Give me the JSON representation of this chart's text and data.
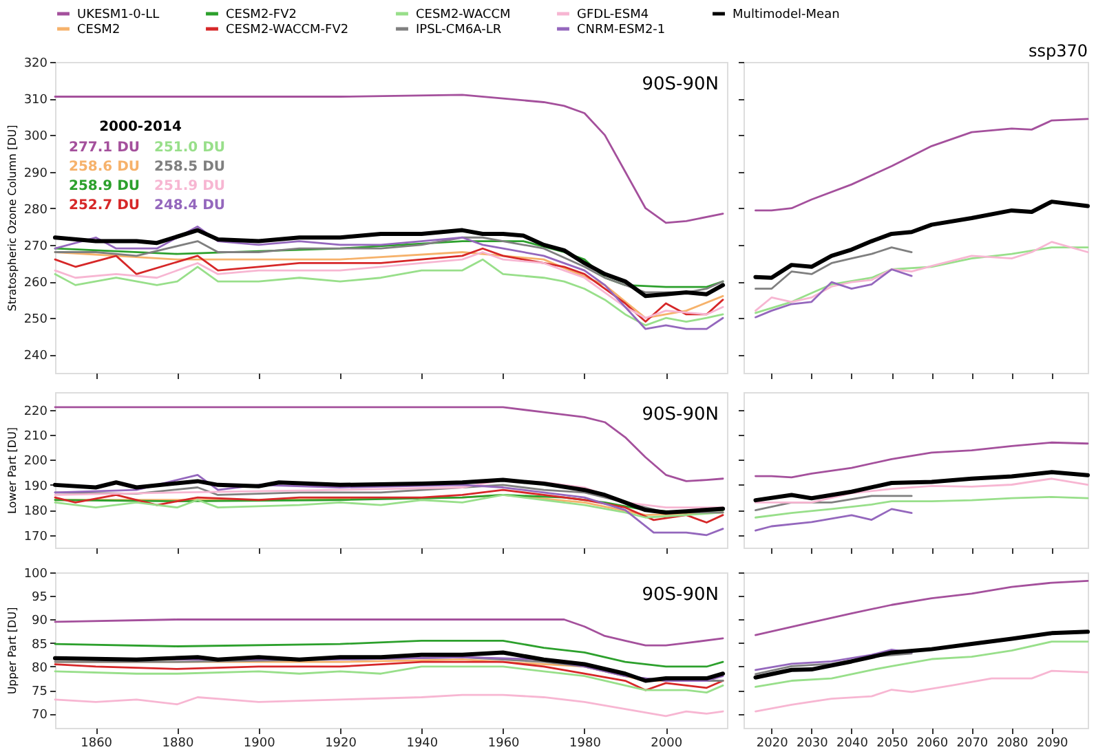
{
  "chart_data": [
    {
      "type": "line",
      "ylabel": "Stratospheric Ozone Column [DU]",
      "xlim": [
        1850,
        2015
      ],
      "xticks": [
        1860,
        1880,
        1900,
        1920,
        1940,
        1960,
        1980,
        2000
      ],
      "ylim": [
        235,
        320
      ],
      "yticks": [
        240,
        250,
        260,
        270,
        280,
        290,
        300,
        310,
        320
      ],
      "tick_labels": "y",
      "legend": "top",
      "annotations": [
        "90S-90N",
        "2000-2014",
        "277.1 DU",
        "258.6 DU",
        "258.9 DU",
        "252.7 DU",
        "251.0 DU",
        "258.5 DU",
        "251.9 DU",
        "248.4 DU"
      ],
      "series": [
        {
          "name": "UKESM1-0-LL",
          "color": "#a4509c",
          "x": [
            1850,
            1880,
            1920,
            1950,
            1960,
            1970,
            1975,
            1980,
            1985,
            1990,
            1995,
            2000,
            2005,
            2014
          ],
          "values": [
            310.5,
            310.5,
            310.5,
            311,
            310,
            309,
            308,
            306,
            300,
            290,
            280,
            276,
            276.5,
            278.5
          ]
        },
        {
          "name": "CESM2",
          "color": "#f6b26b",
          "x": [
            1850,
            1880,
            1920,
            1950,
            1970,
            1985,
            1995,
            2005,
            2014
          ],
          "values": [
            268,
            266,
            266,
            268,
            266,
            259,
            250,
            252,
            256
          ]
        },
        {
          "name": "CESM2-FV2",
          "color": "#2ca02c",
          "x": [
            1850,
            1880,
            1920,
            1950,
            1965,
            1975,
            1980,
            1985,
            1990,
            2000,
            2010,
            2014
          ],
          "values": [
            269,
            267.5,
            269,
            271,
            271,
            268,
            266,
            261,
            259,
            258.5,
            258.5,
            260
          ]
        },
        {
          "name": "CESM2-WACCM-FV2",
          "color": "#d62728",
          "x": [
            1850,
            1855,
            1865,
            1870,
            1885,
            1890,
            1900,
            1910,
            1920,
            1930,
            1940,
            1950,
            1955,
            1960,
            1970,
            1975,
            1980,
            1985,
            1990,
            1995,
            2000,
            2005,
            2010,
            2014
          ],
          "values": [
            266,
            264,
            267,
            262,
            267,
            263,
            264,
            265,
            265,
            265,
            266,
            267,
            269,
            267,
            265,
            264,
            262,
            258,
            254,
            249,
            254,
            251,
            251,
            255
          ]
        },
        {
          "name": "CESM2-WACCM",
          "color": "#98df8a",
          "x": [
            1850,
            1855,
            1865,
            1875,
            1880,
            1885,
            1890,
            1900,
            1910,
            1920,
            1930,
            1940,
            1950,
            1955,
            1960,
            1970,
            1975,
            1980,
            1985,
            1990,
            1995,
            2000,
            2005,
            2010,
            2014
          ],
          "values": [
            262,
            259,
            261,
            259,
            260,
            264,
            260,
            260,
            261,
            260,
            261,
            263,
            263,
            266,
            262,
            261,
            260,
            258,
            255,
            251,
            248,
            250,
            249,
            250,
            251
          ]
        },
        {
          "name": "IPSL-CM6A-LR",
          "color": "#7f7f7f",
          "x": [
            1850,
            1860,
            1870,
            1885,
            1890,
            1900,
            1910,
            1920,
            1930,
            1940,
            1950,
            1955,
            1960,
            1970,
            1980,
            1985,
            1990,
            1995,
            2000,
            2005,
            2010,
            2014
          ],
          "values": [
            268,
            268,
            267,
            271,
            268,
            268,
            269,
            269,
            269,
            270,
            272,
            272,
            271,
            269,
            264,
            261,
            259,
            257,
            257,
            257,
            258,
            260
          ]
        },
        {
          "name": "GFDL-ESM4",
          "color": "#f7b6d2",
          "x": [
            1850,
            1855,
            1865,
            1875,
            1885,
            1890,
            1900,
            1910,
            1920,
            1930,
            1940,
            1950,
            1955,
            1960,
            1970,
            1975,
            1980,
            1985,
            1990,
            1995,
            2000,
            2010,
            2014
          ],
          "values": [
            263,
            261,
            262,
            261,
            265,
            262,
            263,
            263,
            263,
            264,
            265,
            266,
            268,
            266,
            265,
            263,
            261,
            257,
            253,
            250,
            252,
            251,
            253
          ]
        },
        {
          "name": "CNRM-ESM2-1",
          "color": "#9467bd",
          "x": [
            1850,
            1860,
            1865,
            1875,
            1885,
            1890,
            1900,
            1910,
            1920,
            1930,
            1940,
            1950,
            1955,
            1960,
            1970,
            1980,
            1985,
            1990,
            1995,
            2000,
            2005,
            2010,
            2014
          ],
          "values": [
            269,
            272,
            269,
            269,
            275,
            271,
            270,
            271,
            270,
            270,
            271,
            272,
            270,
            269,
            267,
            263,
            259,
            253,
            247,
            248,
            247,
            247,
            250
          ]
        },
        {
          "name": "Multimodel-Mean",
          "color": "#000000",
          "x": [
            1850,
            1860,
            1870,
            1875,
            1885,
            1890,
            1900,
            1910,
            1920,
            1930,
            1940,
            1950,
            1955,
            1960,
            1965,
            1970,
            1975,
            1980,
            1985,
            1990,
            1995,
            2000,
            2005,
            2010,
            2014
          ],
          "values": [
            272,
            271,
            271,
            270.5,
            274,
            271.5,
            271,
            272,
            272,
            273,
            273,
            274,
            273,
            273,
            272.5,
            270,
            268.5,
            265,
            262,
            260,
            256,
            256.5,
            257,
            256.5,
            259
          ]
        }
      ]
    },
    {
      "type": "line",
      "title": "ssp370",
      "xlim": [
        2013,
        2099
      ],
      "xticks": [
        2020,
        2030,
        2040,
        2050,
        2060,
        2070,
        2080,
        2090
      ],
      "ylim": [
        235,
        320
      ],
      "yticks": [
        240,
        250,
        260,
        270,
        280,
        290,
        300,
        310,
        320
      ],
      "tick_labels": false,
      "series": [
        {
          "color": "#a4509c",
          "x": [
            2016,
            2020,
            2025,
            2030,
            2040,
            2050,
            2060,
            2070,
            2080,
            2085,
            2090,
            2099
          ],
          "values": [
            279.4,
            279.4,
            280,
            282.4,
            286.5,
            291.5,
            297,
            300.8,
            301.8,
            301.5,
            304,
            304.4
          ]
        },
        {
          "color": "#98df8a",
          "x": [
            2016,
            2025,
            2035,
            2045,
            2050,
            2060,
            2070,
            2080,
            2090,
            2099
          ],
          "values": [
            251.4,
            254.4,
            259.2,
            261,
            263.3,
            264,
            266.3,
            267.5,
            269.3,
            269.3
          ]
        },
        {
          "color": "#7f7f7f",
          "x": [
            2016,
            2020,
            2025,
            2030,
            2035,
            2040,
            2045,
            2050,
            2055
          ],
          "values": [
            258,
            258,
            262.7,
            262,
            265,
            266.3,
            267.5,
            269.3,
            268
          ]
        },
        {
          "color": "#f7b6d2",
          "x": [
            2016,
            2020,
            2025,
            2030,
            2035,
            2040,
            2045,
            2050,
            2055,
            2060,
            2070,
            2080,
            2085,
            2090,
            2099
          ],
          "values": [
            252,
            255.6,
            254.4,
            255.6,
            258.6,
            259.8,
            260.4,
            263.3,
            262.7,
            264.2,
            267,
            266.3,
            268,
            270.8,
            268
          ]
        },
        {
          "color": "#9467bd",
          "x": [
            2016,
            2020,
            2025,
            2030,
            2035,
            2040,
            2045,
            2050,
            2055
          ],
          "values": [
            250.2,
            252,
            253.8,
            254.4,
            259.8,
            258,
            259.2,
            263.3,
            261.5
          ]
        },
        {
          "color": "#000000",
          "x": [
            2016,
            2020,
            2025,
            2030,
            2035,
            2040,
            2045,
            2050,
            2055,
            2060,
            2070,
            2080,
            2085,
            2090,
            2099
          ],
          "values": [
            261.2,
            261,
            264.5,
            264,
            267,
            268.7,
            271,
            273,
            273.5,
            275.5,
            277.3,
            279.4,
            279,
            281.8,
            280.6
          ]
        }
      ]
    },
    {
      "type": "line",
      "ylabel": "Lower Part [DU]",
      "xlim": [
        1850,
        2015
      ],
      "xticks": [
        1860,
        1880,
        1900,
        1920,
        1940,
        1960,
        1980,
        2000
      ],
      "ylim": [
        165,
        227
      ],
      "yticks": [
        170,
        180,
        190,
        200,
        210,
        220
      ],
      "tick_labels": "y",
      "annotations": [
        "90S-90N"
      ],
      "series": [
        {
          "color": "#a4509c",
          "x": [
            1850,
            1900,
            1960,
            1970,
            1980,
            1985,
            1990,
            1995,
            2000,
            2005,
            2010,
            2014
          ],
          "values": [
            221,
            221,
            221,
            219,
            217,
            215,
            209,
            201,
            194,
            191.5,
            192,
            192.5
          ]
        },
        {
          "color": "#f6b26b",
          "x": [
            1850,
            1900,
            1950,
            1960,
            1980,
            1995,
            2014
          ],
          "values": [
            184,
            184,
            185,
            186,
            183,
            178,
            179
          ]
        },
        {
          "color": "#2ca02c",
          "x": [
            1850,
            1880,
            1920,
            1950,
            1960,
            1975,
            1985,
            1995,
            2005,
            2014
          ],
          "values": [
            184,
            183.5,
            184,
            185,
            186,
            185,
            183,
            180,
            179,
            180
          ]
        },
        {
          "color": "#d62728",
          "x": [
            1850,
            1855,
            1865,
            1875,
            1885,
            1900,
            1910,
            1920,
            1940,
            1950,
            1960,
            1970,
            1980,
            1990,
            1997,
            2005,
            2010,
            2014
          ],
          "values": [
            185,
            183,
            186,
            182,
            185,
            184,
            185,
            185,
            185,
            186,
            188,
            186,
            184,
            181,
            176,
            178,
            175,
            178
          ]
        },
        {
          "color": "#98df8a",
          "x": [
            1850,
            1860,
            1870,
            1880,
            1885,
            1890,
            1910,
            1920,
            1930,
            1940,
            1950,
            1960,
            1970,
            1980,
            1990,
            1995,
            2005,
            2014
          ],
          "values": [
            183,
            181,
            183,
            181,
            184,
            181,
            182,
            183,
            182,
            184,
            183,
            186,
            184,
            182,
            179,
            177,
            178,
            179
          ]
        },
        {
          "color": "#7f7f7f",
          "x": [
            1850,
            1870,
            1885,
            1890,
            1910,
            1930,
            1950,
            1960,
            1970,
            1980,
            1990,
            2000,
            2014
          ],
          "values": [
            187,
            186.5,
            189,
            186,
            187,
            187,
            189,
            190,
            188,
            187,
            183,
            179,
            179
          ]
        },
        {
          "color": "#f7b6d2",
          "x": [
            1850,
            1880,
            1920,
            1950,
            1960,
            1970,
            1980,
            1990,
            2000,
            2014
          ],
          "values": [
            186,
            187,
            188,
            189,
            192,
            191,
            189,
            183,
            181,
            181
          ]
        },
        {
          "color": "#9467bd",
          "x": [
            1850,
            1870,
            1885,
            1890,
            1900,
            1920,
            1950,
            1960,
            1970,
            1980,
            1990,
            1997,
            2005,
            2010,
            2014
          ],
          "values": [
            187,
            188,
            194,
            188,
            190,
            189,
            190,
            189,
            187,
            185,
            180,
            171,
            171,
            170,
            172.5
          ]
        },
        {
          "color": "#000000",
          "x": [
            1850,
            1860,
            1865,
            1870,
            1885,
            1890,
            1900,
            1905,
            1920,
            1940,
            1950,
            1960,
            1970,
            1980,
            1985,
            1990,
            1995,
            2000,
            2005,
            2014
          ],
          "values": [
            190,
            189,
            191,
            189,
            191.5,
            190,
            189.5,
            191,
            190,
            190.5,
            191,
            192,
            190.5,
            188,
            186,
            183,
            180,
            179,
            179.5,
            180.5
          ]
        }
      ]
    },
    {
      "type": "line",
      "xlim": [
        2013,
        2099
      ],
      "xticks": [
        2020,
        2030,
        2040,
        2050,
        2060,
        2070,
        2080,
        2090
      ],
      "ylim": [
        165,
        227
      ],
      "yticks": [
        170,
        180,
        190,
        200,
        210,
        220
      ],
      "tick_labels": false,
      "series": [
        {
          "color": "#a4509c",
          "x": [
            2016,
            2020,
            2025,
            2030,
            2040,
            2050,
            2060,
            2070,
            2080,
            2090,
            2099
          ],
          "values": [
            193.5,
            193.5,
            193,
            194.5,
            196.8,
            200.3,
            202.9,
            203.8,
            205.5,
            206.9,
            206.5
          ]
        },
        {
          "color": "#98df8a",
          "x": [
            2016,
            2025,
            2035,
            2045,
            2050,
            2060,
            2070,
            2080,
            2090,
            2099
          ],
          "values": [
            177,
            178.8,
            180.4,
            182.2,
            183.5,
            183.5,
            183.9,
            184.7,
            185.2,
            184.7
          ]
        },
        {
          "color": "#7f7f7f",
          "x": [
            2016,
            2025,
            2035,
            2045,
            2055
          ],
          "values": [
            179.9,
            183,
            183,
            185.6,
            185.6
          ]
        },
        {
          "color": "#f7b6d2",
          "x": [
            2016,
            2030,
            2040,
            2050,
            2060,
            2070,
            2080,
            2090,
            2099
          ],
          "values": [
            183,
            183,
            186.7,
            188.4,
            189.6,
            189.3,
            190.1,
            192.5,
            190.1
          ]
        },
        {
          "color": "#9467bd",
          "x": [
            2016,
            2020,
            2030,
            2040,
            2045,
            2050,
            2055
          ],
          "values": [
            171.8,
            173.5,
            175.2,
            177.9,
            176.1,
            180.4,
            178.8
          ]
        },
        {
          "color": "#000000",
          "x": [
            2016,
            2025,
            2030,
            2040,
            2050,
            2060,
            2070,
            2080,
            2090,
            2099
          ],
          "values": [
            183.9,
            186,
            184.7,
            187.3,
            190.8,
            191.2,
            192.5,
            193.4,
            195.1,
            193.9
          ]
        }
      ]
    },
    {
      "type": "line",
      "ylabel": "Upper Part [DU]",
      "xlim": [
        1850,
        2015
      ],
      "xticks": [
        1860,
        1880,
        1900,
        1920,
        1940,
        1960,
        1980,
        2000
      ],
      "ylim": [
        67,
        100
      ],
      "yticks": [
        70,
        75,
        80,
        85,
        90,
        95,
        100
      ],
      "annotations": [
        "90S-90N"
      ],
      "series": [
        {
          "color": "#a4509c",
          "x": [
            1850,
            1880,
            1930,
            1960,
            1975,
            1980,
            1985,
            1990,
            1995,
            2000,
            2005,
            2014
          ],
          "values": [
            89.5,
            90,
            90,
            90,
            90,
            88.5,
            86.5,
            85.5,
            84.5,
            84.5,
            85,
            86
          ]
        },
        {
          "color": "#f6b26b",
          "x": [
            1850,
            1920,
            1950,
            1980,
            1995,
            2014
          ],
          "values": [
            81,
            81,
            81.5,
            80,
            77,
            77
          ]
        },
        {
          "color": "#2ca02c",
          "x": [
            1850,
            1880,
            1920,
            1940,
            1960,
            1970,
            1980,
            1990,
            2000,
            2010,
            2014
          ],
          "values": [
            84.8,
            84.3,
            84.8,
            85.5,
            85.5,
            84,
            83,
            81,
            80,
            80,
            81
          ]
        },
        {
          "color": "#d62728",
          "x": [
            1850,
            1860,
            1880,
            1900,
            1910,
            1920,
            1930,
            1940,
            1950,
            1960,
            1970,
            1980,
            1990,
            1995,
            2000,
            2010,
            2014
          ],
          "values": [
            80.5,
            80,
            79.5,
            80,
            80,
            80,
            80.5,
            81,
            81,
            81,
            80,
            78.5,
            77,
            75,
            76.5,
            75.5,
            77
          ]
        },
        {
          "color": "#98df8a",
          "x": [
            1850,
            1870,
            1880,
            1900,
            1910,
            1920,
            1930,
            1940,
            1950,
            1960,
            1970,
            1980,
            1990,
            1995,
            2005,
            2010,
            2014
          ],
          "values": [
            79,
            78.5,
            78.5,
            79,
            78.5,
            79,
            78.5,
            80,
            80,
            80,
            79,
            78,
            76,
            75,
            75,
            74.5,
            76
          ]
        },
        {
          "color": "#7f7f7f",
          "x": [
            1850,
            1880,
            1920,
            1950,
            1970,
            1980,
            1990,
            2000,
            2014
          ],
          "values": [
            81,
            81,
            81.5,
            82,
            81,
            80,
            78,
            77,
            77
          ]
        },
        {
          "color": "#f7b6d2",
          "x": [
            1850,
            1860,
            1870,
            1880,
            1885,
            1900,
            1920,
            1940,
            1950,
            1960,
            1970,
            1980,
            1990,
            2000,
            2005,
            2010,
            2014
          ],
          "values": [
            73,
            72.5,
            73,
            72,
            73.5,
            72.5,
            73,
            73.5,
            74,
            74,
            73.5,
            72.5,
            71,
            69.5,
            70.5,
            70,
            70.5
          ]
        },
        {
          "color": "#9467bd",
          "x": [
            1850,
            1880,
            1920,
            1950,
            1970,
            1980,
            1990,
            2000,
            2010,
            2014
          ],
          "values": [
            81.5,
            81.5,
            81.5,
            82,
            81.5,
            80,
            78,
            77,
            77,
            78
          ]
        },
        {
          "color": "#000000",
          "x": [
            1850,
            1870,
            1885,
            1890,
            1900,
            1910,
            1920,
            1930,
            1940,
            1950,
            1960,
            1970,
            1980,
            1990,
            1995,
            2000,
            2010,
            2014
          ],
          "values": [
            81.8,
            81.5,
            82,
            81.5,
            82,
            81.5,
            82,
            82,
            82.5,
            82.5,
            83,
            81.5,
            80.5,
            78.5,
            77,
            77.5,
            77.5,
            78.5
          ]
        }
      ]
    },
    {
      "type": "line",
      "xlim": [
        2013,
        2099
      ],
      "xticks": [
        2020,
        2030,
        2040,
        2050,
        2060,
        2070,
        2080,
        2090
      ],
      "ylim": [
        67,
        100
      ],
      "yticks": [
        70,
        75,
        80,
        85,
        90,
        95,
        100
      ],
      "tick_labels": "x",
      "series": [
        {
          "color": "#a4509c",
          "x": [
            2016,
            2030,
            2040,
            2050,
            2060,
            2070,
            2080,
            2090,
            2099
          ],
          "values": [
            86.7,
            89.4,
            91.3,
            93.1,
            94.5,
            95.5,
            96.9,
            97.8,
            98.2
          ]
        },
        {
          "color": "#98df8a",
          "x": [
            2016,
            2025,
            2035,
            2045,
            2050,
            2060,
            2070,
            2080,
            2090,
            2099
          ],
          "values": [
            75.7,
            77,
            77.5,
            79.3,
            80.1,
            81.6,
            82.1,
            83.4,
            85.3,
            85.3
          ]
        },
        {
          "color": "#7f7f7f",
          "x": [
            2016,
            2025,
            2035,
            2045,
            2055
          ],
          "values": [
            78.4,
            80.1,
            80.6,
            82.1,
            82.8
          ]
        },
        {
          "color": "#f7b6d2",
          "x": [
            2016,
            2025,
            2035,
            2045,
            2050,
            2055,
            2065,
            2075,
            2085,
            2090,
            2099
          ],
          "values": [
            70.5,
            71.9,
            73.2,
            73.7,
            75.1,
            74.6,
            76,
            77.5,
            77.5,
            79.1,
            78.8
          ]
        },
        {
          "color": "#9467bd",
          "x": [
            2016,
            2025,
            2035,
            2045,
            2050,
            2055
          ],
          "values": [
            79.3,
            80.6,
            81.1,
            82.5,
            83.6,
            83
          ]
        },
        {
          "color": "#000000",
          "x": [
            2016,
            2025,
            2030,
            2040,
            2050,
            2060,
            2070,
            2080,
            2090,
            2099
          ],
          "values": [
            77.7,
            79.3,
            79.4,
            81.1,
            83,
            83.7,
            84.8,
            85.9,
            87.1,
            87.4
          ]
        }
      ]
    }
  ]
}
